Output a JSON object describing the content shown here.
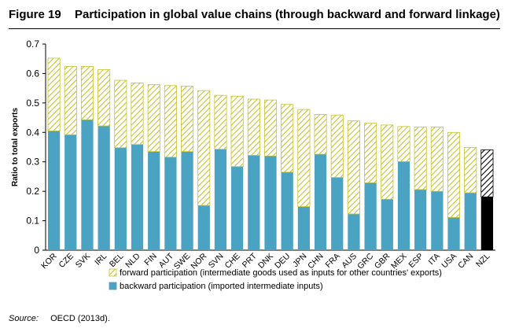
{
  "figure": {
    "number": "Figure 19",
    "title": "Participation in global value chains (through backward and forward linkage)"
  },
  "source": {
    "label": "Source:",
    "text": "OECD (2013d)."
  },
  "colors": {
    "backward": "#4ba3c3",
    "forward_fill": "#ffffff",
    "forward_hatch": "#c6c230",
    "nzl_backward": "#000000",
    "nzl_hatch": "#000000"
  },
  "chart_data": {
    "type": "bar",
    "stacked": true,
    "title": "",
    "xlabel": "",
    "ylabel": "Ratio to total exports",
    "ylim": [
      0,
      0.7
    ],
    "yticks": [
      "0",
      "0.1",
      "0.2",
      "0.3",
      "0.4",
      "0.5",
      "0.6",
      "0.7"
    ],
    "categories": [
      "KOR",
      "CZE",
      "SVK",
      "IRL",
      "BEL",
      "NLD",
      "FIN",
      "AUT",
      "SWE",
      "NOR",
      "SVN",
      "CHE",
      "PRT",
      "DNK",
      "DEU",
      "JPN",
      "CHN",
      "FRA",
      "AUS",
      "GRC",
      "GBR",
      "MEX",
      "ESP",
      "ITA",
      "USA",
      "CAN",
      "NZL"
    ],
    "series": [
      {
        "name": "backward participation (imported intermediate inputs)",
        "values": [
          0.405,
          0.392,
          0.443,
          0.422,
          0.348,
          0.359,
          0.335,
          0.316,
          0.335,
          0.152,
          0.343,
          0.284,
          0.322,
          0.32,
          0.265,
          0.148,
          0.326,
          0.247,
          0.123,
          0.229,
          0.173,
          0.301,
          0.206,
          0.2,
          0.111,
          0.195,
          0.181
        ]
      },
      {
        "name": "forward participation (intermediate goods used as inputs for other countries' exports)",
        "values": [
          0.247,
          0.232,
          0.181,
          0.191,
          0.229,
          0.209,
          0.227,
          0.243,
          0.222,
          0.39,
          0.183,
          0.239,
          0.191,
          0.19,
          0.23,
          0.33,
          0.135,
          0.212,
          0.316,
          0.202,
          0.252,
          0.119,
          0.212,
          0.218,
          0.289,
          0.154,
          0.16
        ]
      }
    ],
    "grid": false,
    "legend": "bottom"
  }
}
